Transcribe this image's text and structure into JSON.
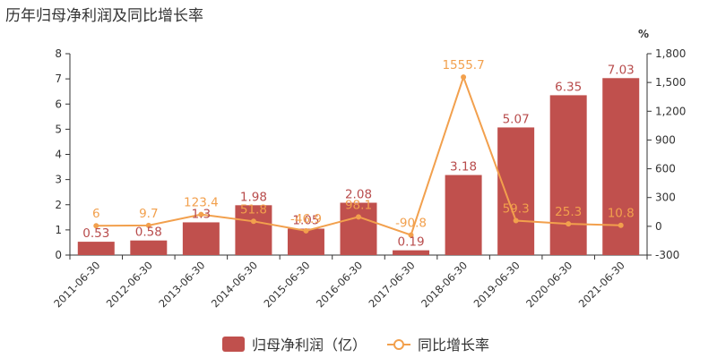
{
  "title": "历年归母净利润及同比增长率",
  "chart_data": {
    "type": "bar",
    "categories": [
      "2011-06-30",
      "2012-06-30",
      "2013-06-30",
      "2014-06-30",
      "2015-06-30",
      "2016-06-30",
      "2017-06-30",
      "2018-06-30",
      "2019-06-30",
      "2020-06-30",
      "2021-06-30"
    ],
    "series": [
      {
        "name": "归母净利润（亿）",
        "type": "bar",
        "axis": "left",
        "color": "#c0504d",
        "values": [
          0.53,
          0.58,
          1.3,
          1.98,
          1.05,
          2.08,
          0.19,
          3.18,
          5.07,
          6.35,
          7.03
        ],
        "labels": [
          "0.53",
          "0.58",
          "1.3",
          "1.98",
          "1.05",
          "2.08",
          "0.19",
          "3.18",
          "5.07",
          "6.35",
          "7.03"
        ]
      },
      {
        "name": "同比增长率",
        "type": "line",
        "axis": "right",
        "color": "#f2a04d",
        "values": [
          6,
          9.7,
          123.4,
          51.8,
          -46.9,
          98.1,
          -90.8,
          1555.7,
          59.3,
          25.3,
          10.8
        ],
        "labels": [
          "6",
          "9.7",
          "123.4",
          "51.8",
          "-46.9",
          "98.1",
          "-90.8",
          "1555.7",
          "59.3",
          "25.3",
          "10.8"
        ]
      }
    ],
    "y_left": {
      "min": 0,
      "max": 8,
      "ticks": [
        0,
        1,
        2,
        3,
        4,
        5,
        6,
        7,
        8
      ],
      "tick_labels": [
        "0",
        "1",
        "2",
        "3",
        "4",
        "5",
        "6",
        "7",
        "8"
      ]
    },
    "y_right": {
      "min": -300,
      "max": 1800,
      "unit": "%",
      "ticks": [
        -300,
        0,
        300,
        600,
        900,
        1200,
        1500,
        1800
      ],
      "tick_labels": [
        "-300",
        "0",
        "300",
        "600",
        "900",
        "1,200",
        "1,500",
        "1,800"
      ]
    },
    "grid": false,
    "legend_position": "bottom-center"
  }
}
